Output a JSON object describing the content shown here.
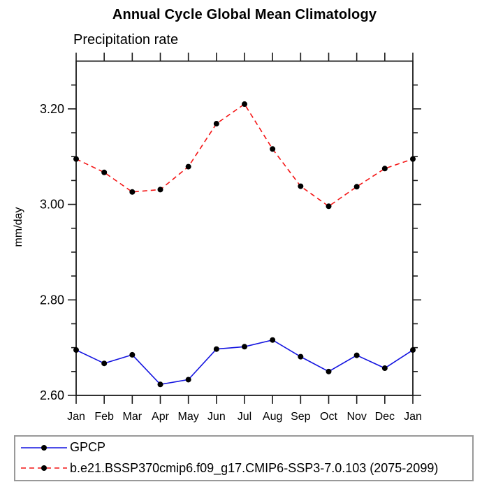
{
  "header": {
    "title": "Annual Cycle Global Mean Climatology",
    "subtitle": "Precipitation rate"
  },
  "chart_data": {
    "type": "line",
    "title": "Annual Cycle Global Mean Climatology",
    "subtitle": "Precipitation rate",
    "xlabel": "",
    "ylabel": "mm/day",
    "x_categories": [
      "Jan",
      "Feb",
      "Mar",
      "Apr",
      "May",
      "Jun",
      "Jul",
      "Aug",
      "Sep",
      "Oct",
      "Nov",
      "Dec",
      "Jan"
    ],
    "ylim": [
      2.6,
      3.3
    ],
    "y_major_ticks": [
      2.6,
      2.8,
      3.0,
      3.2
    ],
    "y_major_tick_labels": [
      "2.60",
      "2.80",
      "3.00",
      "3.20"
    ],
    "y_minor_tick_step": 0.05,
    "grid": false,
    "legend_position": "bottom-left boxed",
    "series": [
      {
        "name": "GPCP",
        "color": "#1414e0",
        "line_style": "solid",
        "marker": "filled-circle",
        "marker_color": "#000000",
        "values": [
          2.695,
          2.667,
          2.685,
          2.623,
          2.633,
          2.697,
          2.702,
          2.716,
          2.681,
          2.65,
          2.684,
          2.657,
          2.695
        ]
      },
      {
        "name": "b.e21.BSSP370cmip6.f09_g17.CMIP6-SSP3-7.0.103 (2075-2099)",
        "color": "#f41414",
        "line_style": "dashed",
        "marker": "filled-circle",
        "marker_color": "#000000",
        "values": [
          3.095,
          3.067,
          3.026,
          3.031,
          3.079,
          3.169,
          3.21,
          3.116,
          3.038,
          2.996,
          3.037,
          3.075,
          3.095
        ]
      }
    ]
  },
  "legend": {
    "items": [
      {
        "label": "GPCP",
        "color": "#1414e0",
        "line_style": "solid",
        "marker": "filled-circle"
      },
      {
        "label": "b.e21.BSSP370cmip6.f09_g17.CMIP6-SSP3-7.0.103 (2075-2099)",
        "color": "#f41414",
        "line_style": "dashed",
        "marker": "filled-circle"
      }
    ]
  },
  "colors": {
    "frame": "#1a1a1a",
    "text": "#000000",
    "legend_border": "#999999",
    "marker": "#000000",
    "series_blue": "#1414e0",
    "series_red": "#f41414"
  }
}
